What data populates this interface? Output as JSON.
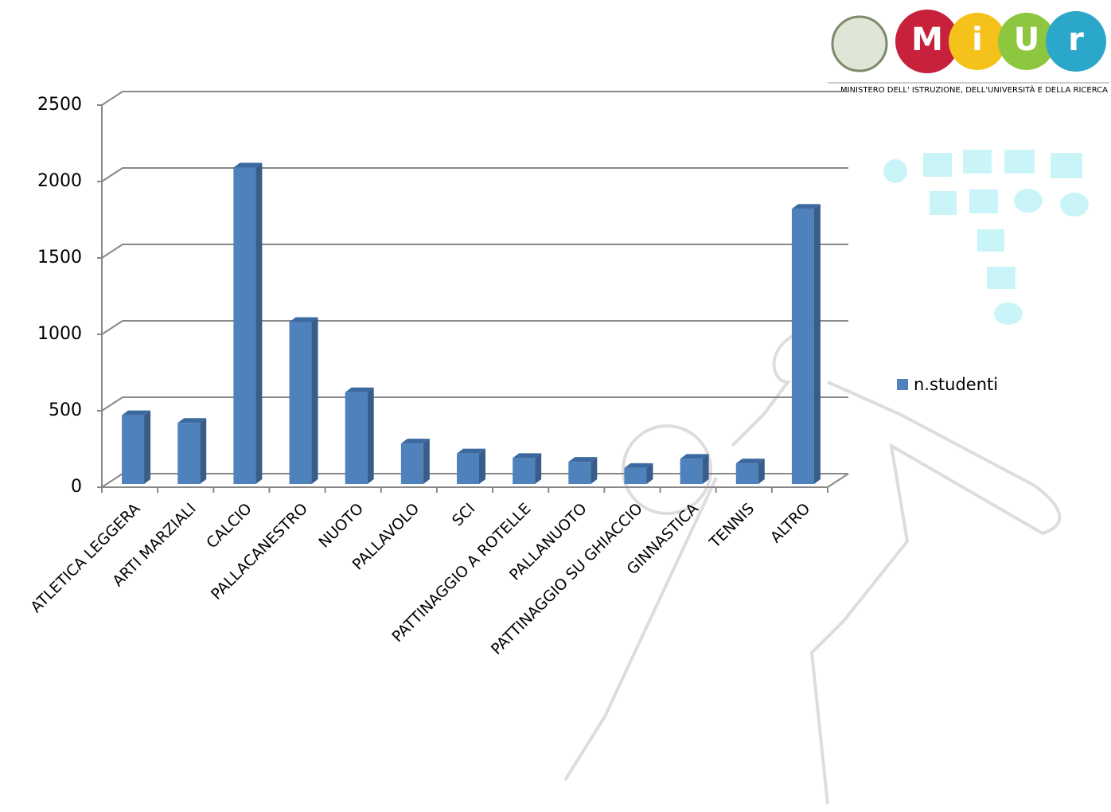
{
  "logo": {
    "letters": [
      "M",
      "i",
      "U",
      "r"
    ],
    "caption": "MINISTERO DELL' ISTRUZIONE, DELL'UNIVERSITÀ E DELLA RICERCA"
  },
  "chart_data": {
    "type": "bar3d",
    "categories": [
      "ATLETICA LEGGERA",
      "ARTI MARZIALI",
      "CALCIO",
      "PALLACANESTRO",
      "NUOTO",
      "PALLAVOLO",
      "SCI",
      "PATTINAGGIO A ROTELLE",
      "PALLANUOTO",
      "PATTINAGGIO SU GHIACCIO",
      "GINNASTICA",
      "TENNIS",
      "ALTRO"
    ],
    "series": [
      {
        "name": "n.studenti",
        "color": "#4f81bd",
        "values": [
          450,
          400,
          2070,
          1060,
          600,
          265,
          200,
          170,
          145,
          105,
          165,
          135,
          1800
        ]
      }
    ],
    "ylim": [
      0,
      2500
    ],
    "yticks": [
      0,
      500,
      1000,
      1500,
      2000,
      2500
    ],
    "grid": true,
    "legend": "right"
  }
}
